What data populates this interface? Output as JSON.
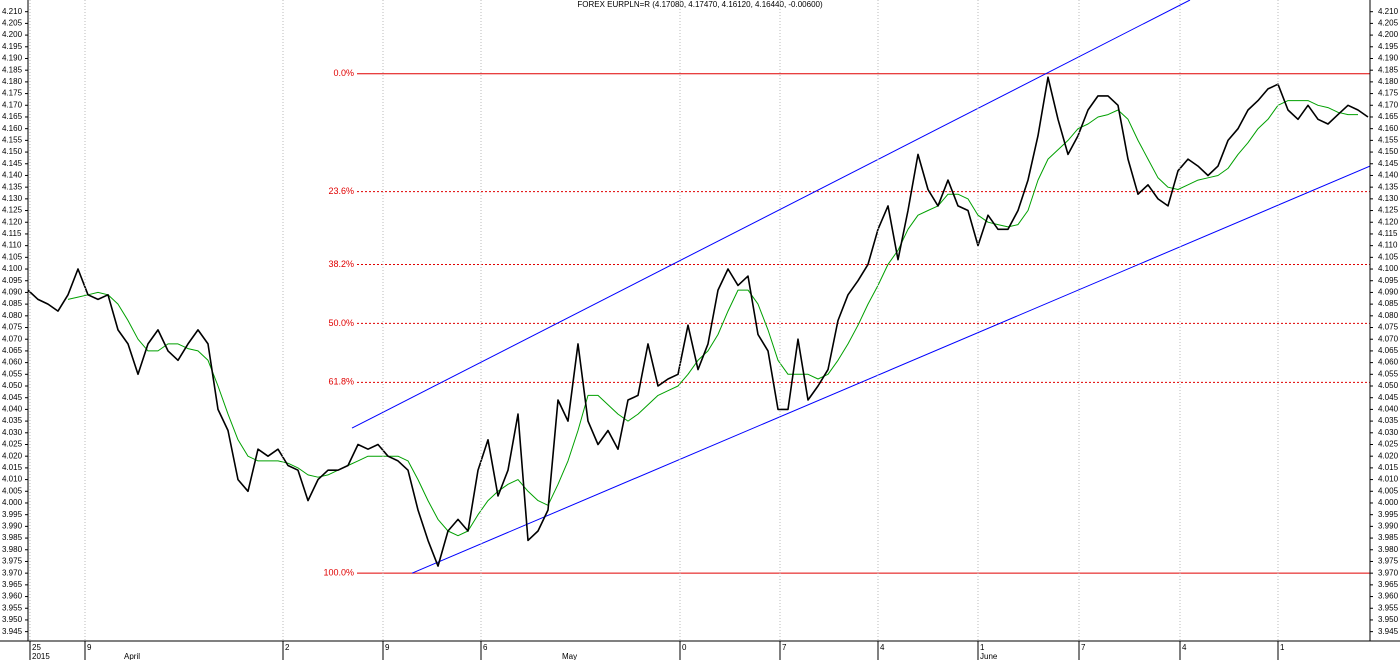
{
  "chart_data": {
    "type": "line",
    "title": "FOREX EURPLN=R (4.17080, 4.17470, 4.16120, 4.16440, -0.00600)",
    "xlim": [
      0,
      134.2
    ],
    "ylim": [
      3.941,
      4.215
    ],
    "xticks": [
      {
        "value": 0.2,
        "label": "25"
      },
      {
        "value": 5.7,
        "label": "9"
      },
      {
        "value": 25.5,
        "label": "2"
      },
      {
        "value": 35.5,
        "label": "9"
      },
      {
        "value": 45.3,
        "label": "6"
      },
      {
        "value": 65.2,
        "label": "0"
      },
      {
        "value": 75.2,
        "label": "7"
      },
      {
        "value": 85,
        "label": "4"
      },
      {
        "value": 95,
        "label": "1"
      },
      {
        "value": 105.1,
        "label": "7"
      },
      {
        "value": 115.2,
        "label": "4"
      },
      {
        "value": 125,
        "label": "1"
      }
    ],
    "month_labels": [
      {
        "value": 0.2,
        "label": "2015"
      },
      {
        "value": 9.4,
        "label": "April"
      },
      {
        "value": 53.2,
        "label": "May"
      },
      {
        "value": 95,
        "label": "June"
      }
    ],
    "yticks": [
      {
        "value": 3.945,
        "label": "3.945"
      },
      {
        "value": 3.95,
        "label": "3.950"
      },
      {
        "value": 3.955,
        "label": "3.955"
      },
      {
        "value": 3.96,
        "label": "3.960"
      },
      {
        "value": 3.965,
        "label": "3.965"
      },
      {
        "value": 3.97,
        "label": "3.970"
      },
      {
        "value": 3.975,
        "label": "3.975"
      },
      {
        "value": 3.98,
        "label": "3.980"
      },
      {
        "value": 3.985,
        "label": "3.985"
      },
      {
        "value": 3.99,
        "label": "3.990"
      },
      {
        "value": 3.995,
        "label": "3.995"
      },
      {
        "value": 4.0,
        "label": "4.000"
      },
      {
        "value": 4.005,
        "label": "4.005"
      },
      {
        "value": 4.01,
        "label": "4.010"
      },
      {
        "value": 4.015,
        "label": "4.015"
      },
      {
        "value": 4.02,
        "label": "4.020"
      },
      {
        "value": 4.025,
        "label": "4.025"
      },
      {
        "value": 4.03,
        "label": "4.030"
      },
      {
        "value": 4.035,
        "label": "4.035"
      },
      {
        "value": 4.04,
        "label": "4.040"
      },
      {
        "value": 4.045,
        "label": "4.045"
      },
      {
        "value": 4.05,
        "label": "4.050"
      },
      {
        "value": 4.055,
        "label": "4.055"
      },
      {
        "value": 4.06,
        "label": "4.060"
      },
      {
        "value": 4.065,
        "label": "4.065"
      },
      {
        "value": 4.07,
        "label": "4.070"
      },
      {
        "value": 4.075,
        "label": "4.075"
      },
      {
        "value": 4.08,
        "label": "4.080"
      },
      {
        "value": 4.085,
        "label": "4.085"
      },
      {
        "value": 4.09,
        "label": "4.090"
      },
      {
        "value": 4.095,
        "label": "4.095"
      },
      {
        "value": 4.1,
        "label": "4.100"
      },
      {
        "value": 4.105,
        "label": "4.105"
      },
      {
        "value": 4.11,
        "label": "4.110"
      },
      {
        "value": 4.115,
        "label": "4.115"
      },
      {
        "value": 4.12,
        "label": "4.120"
      },
      {
        "value": 4.125,
        "label": "4.125"
      },
      {
        "value": 4.13,
        "label": "4.130"
      },
      {
        "value": 4.135,
        "label": "4.135"
      },
      {
        "value": 4.14,
        "label": "4.140"
      },
      {
        "value": 4.145,
        "label": "4.145"
      },
      {
        "value": 4.15,
        "label": "4.150"
      },
      {
        "value": 4.155,
        "label": "4.155"
      },
      {
        "value": 4.16,
        "label": "4.160"
      },
      {
        "value": 4.165,
        "label": "4.165"
      },
      {
        "value": 4.17,
        "label": "4.170"
      },
      {
        "value": 4.175,
        "label": "4.175"
      },
      {
        "value": 4.18,
        "label": "4.180"
      },
      {
        "value": 4.185,
        "label": "4.185"
      },
      {
        "value": 4.19,
        "label": "4.190"
      },
      {
        "value": 4.195,
        "label": "4.195"
      },
      {
        "value": 4.2,
        "label": "4.200"
      },
      {
        "value": 4.205,
        "label": "4.205"
      },
      {
        "value": 4.21,
        "label": "4.210"
      }
    ],
    "grid": true,
    "series": [
      {
        "color": "#000000",
        "values": [
          4.091,
          4.087,
          4.085,
          4.082,
          4.089,
          4.1,
          4.089,
          4.087,
          4.089,
          4.074,
          4.068,
          4.055,
          4.068,
          4.074,
          4.065,
          4.061,
          4.068,
          4.074,
          4.068,
          4.04,
          4.031,
          4.01,
          4.005,
          4.023,
          4.02,
          4.023,
          4.016,
          4.014,
          4.001,
          4.01,
          4.014,
          4.014,
          4.016,
          4.025,
          4.023,
          4.025,
          4.02,
          4.018,
          4.014,
          3.997,
          3.984,
          3.973,
          3.988,
          3.993,
          3.988,
          4.014,
          4.027,
          4.003,
          4.014,
          4.038,
          3.984,
          3.988,
          3.997,
          4.044,
          4.035,
          4.068,
          4.035,
          4.025,
          4.031,
          4.023,
          4.044,
          4.046,
          4.068,
          4.05,
          4.053,
          4.055,
          4.076,
          4.057,
          4.068,
          4.091,
          4.1,
          4.093,
          4.097,
          4.072,
          4.065,
          4.04,
          4.04,
          4.07,
          4.044,
          4.05,
          4.057,
          4.078,
          4.089,
          4.095,
          4.102,
          4.117,
          4.127,
          4.104,
          4.125,
          4.149,
          4.134,
          4.127,
          4.138,
          4.127,
          4.125,
          4.11,
          4.123,
          4.117,
          4.117,
          4.125,
          4.138,
          4.157,
          4.182,
          4.164,
          4.149,
          4.157,
          4.168,
          4.174,
          4.174,
          4.17,
          4.147,
          4.132,
          4.136,
          4.13,
          4.127,
          4.142,
          4.147,
          4.144,
          4.14,
          4.144,
          4.155,
          4.16,
          4.168,
          4.172,
          4.177,
          4.179,
          4.168,
          4.164,
          4.17,
          4.164,
          4.162,
          4.166,
          4.17,
          4.168,
          4.165
        ]
      },
      {
        "color": "#00a000",
        "values": [
          null,
          null,
          null,
          null,
          4.087,
          4.088,
          4.089,
          4.09,
          4.089,
          4.085,
          4.078,
          4.07,
          4.065,
          4.065,
          4.068,
          4.068,
          4.066,
          4.065,
          4.061,
          4.05,
          4.038,
          4.027,
          4.02,
          4.018,
          4.018,
          4.018,
          4.017,
          4.015,
          4.012,
          4.011,
          4.012,
          4.014,
          4.016,
          4.018,
          4.02,
          4.02,
          4.02,
          4.02,
          4.018,
          4.01,
          4.001,
          3.993,
          3.988,
          3.986,
          3.988,
          3.995,
          4.001,
          4.005,
          4.008,
          4.01,
          4.005,
          4.001,
          3.999,
          4.008,
          4.018,
          4.031,
          4.046,
          4.046,
          4.042,
          4.038,
          4.035,
          4.038,
          4.042,
          4.046,
          4.048,
          4.05,
          4.055,
          4.061,
          4.065,
          4.072,
          4.082,
          4.091,
          4.091,
          4.085,
          4.074,
          4.061,
          4.055,
          4.055,
          4.055,
          4.053,
          4.055,
          4.061,
          4.068,
          4.076,
          4.085,
          4.093,
          4.102,
          4.108,
          4.117,
          4.123,
          4.125,
          4.127,
          4.132,
          4.132,
          4.13,
          4.123,
          4.12,
          4.119,
          4.118,
          4.119,
          4.125,
          4.138,
          4.147,
          4.151,
          4.155,
          4.16,
          4.162,
          4.165,
          4.166,
          4.168,
          4.164,
          4.155,
          4.147,
          4.139,
          4.135,
          4.134,
          4.136,
          4.138,
          4.139,
          4.14,
          4.143,
          4.149,
          4.154,
          4.16,
          4.164,
          4.17,
          4.172,
          4.172,
          4.172,
          4.17,
          4.169,
          4.167,
          4.166,
          4.166,
          null
        ]
      }
    ],
    "channel": {
      "color": "#0000ff",
      "lines": [
        {
          "x": [
            32.4,
            116.2
          ],
          "y": [
            4.032,
            4.215
          ]
        },
        {
          "x": [
            38.4,
            134.2
          ],
          "y": [
            3.97,
            4.144
          ]
        }
      ]
    },
    "fibonacci": {
      "color": "#e00000",
      "start": 32.9,
      "high": 4.1835,
      "low": 3.97,
      "levels": [
        {
          "value": 0,
          "label": "0.0%"
        },
        {
          "value": 23.6,
          "label": "23.6%"
        },
        {
          "value": 38.2,
          "label": "38.2%"
        },
        {
          "value": 50,
          "label": "50.0%"
        },
        {
          "value": 61.8,
          "label": "61.8%"
        },
        {
          "value": 100,
          "label": "100.0%"
        }
      ]
    }
  }
}
